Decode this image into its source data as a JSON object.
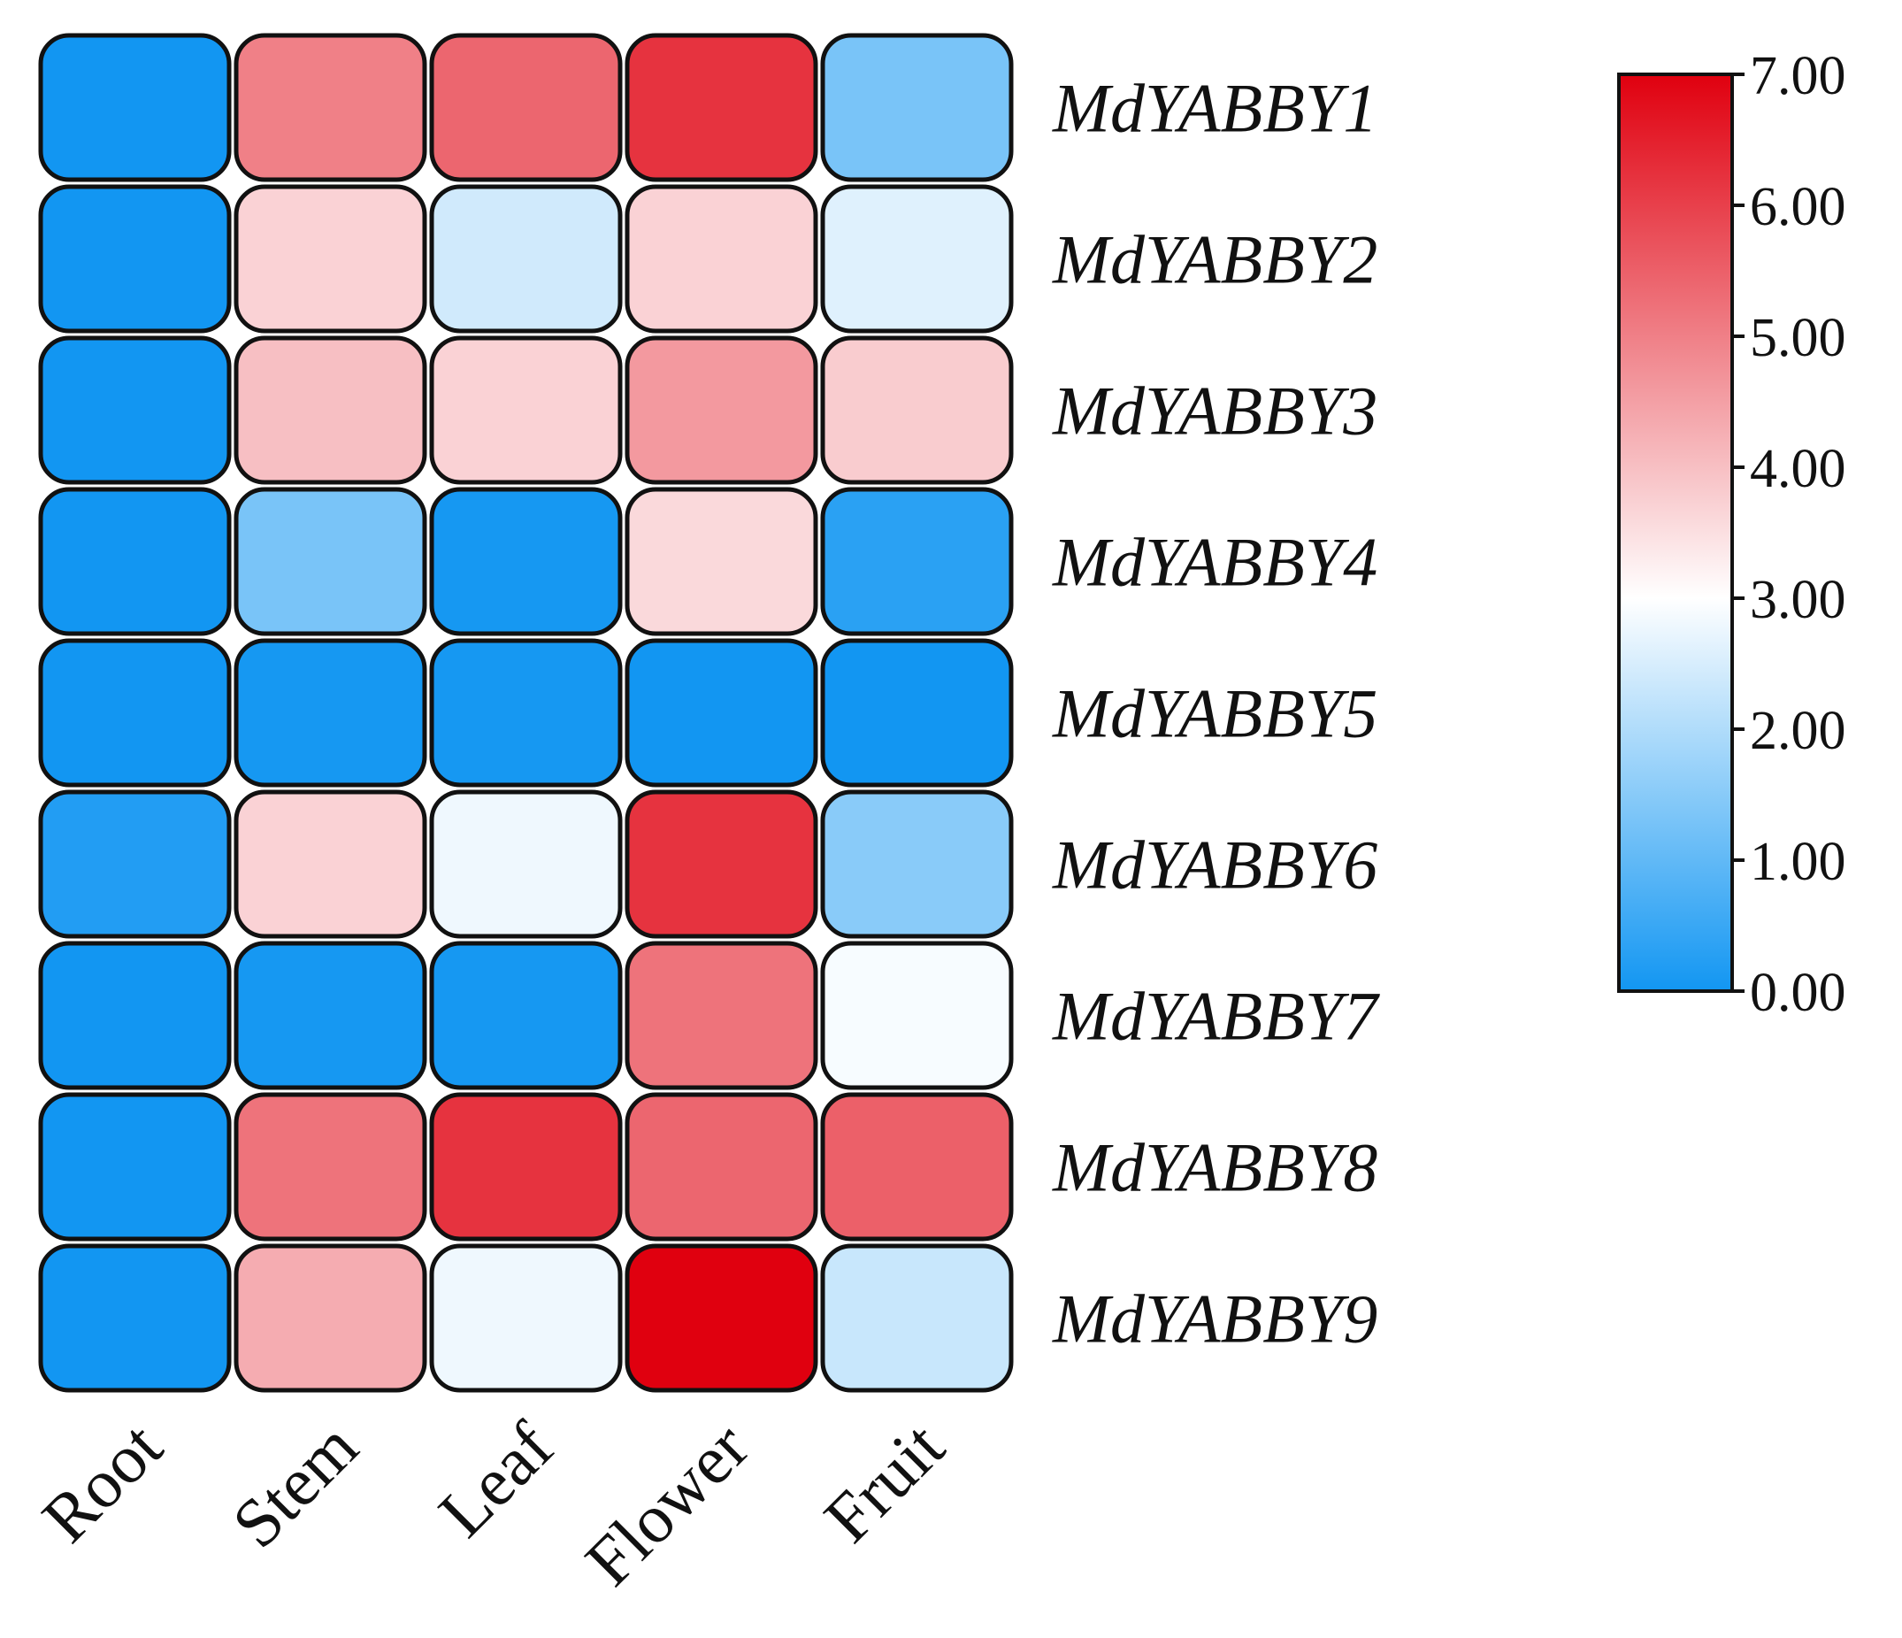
{
  "chart_data": {
    "type": "heatmap",
    "title": "",
    "rows": [
      "MdYABBY1",
      "MdYABBY2",
      "MdYABBY3",
      "MdYABBY4",
      "MdYABBY5",
      "MdYABBY6",
      "MdYABBY7",
      "MdYABBY8",
      "MdYABBY9"
    ],
    "columns": [
      "Root",
      "Stem",
      "Leaf",
      "Flower",
      "Fruit"
    ],
    "values": [
      [
        0.0,
        5.0,
        5.4,
        6.2,
        1.3
      ],
      [
        0.0,
        3.7,
        2.4,
        3.7,
        2.6
      ],
      [
        0.0,
        4.0,
        3.7,
        4.6,
        3.8
      ],
      [
        0.0,
        1.3,
        0.05,
        3.6,
        0.3
      ],
      [
        0.0,
        0.05,
        0.05,
        0.0,
        0.0
      ],
      [
        0.2,
        3.7,
        2.8,
        6.2,
        1.5
      ],
      [
        0.0,
        0.05,
        0.05,
        5.2,
        2.9
      ],
      [
        0.0,
        5.2,
        6.2,
        5.4,
        5.5
      ],
      [
        0.0,
        4.3,
        2.8,
        7.0,
        2.3
      ]
    ],
    "colorscale": {
      "min": 0,
      "max": 7,
      "stops": [
        {
          "value": 0,
          "color": "#1296f2"
        },
        {
          "value": 3,
          "color": "#ffffff"
        },
        {
          "value": 7,
          "color": "#e0000f"
        }
      ],
      "ticks": [
        "0.00",
        "1.00",
        "2.00",
        "3.00",
        "4.00",
        "5.00",
        "6.00",
        "7.00"
      ]
    },
    "legend_position": "top-right"
  }
}
